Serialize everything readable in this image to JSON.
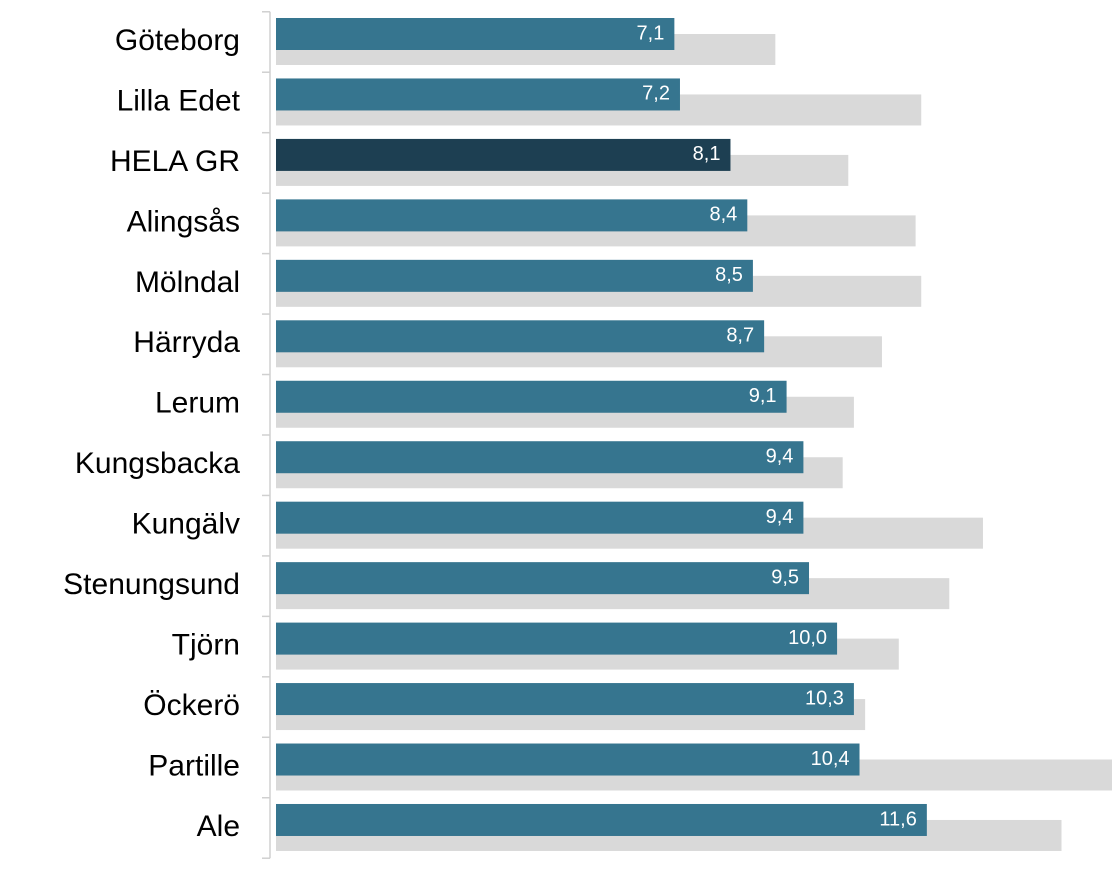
{
  "chart_data": {
    "type": "bar",
    "orientation": "horizontal",
    "categories": [
      "Göteborg",
      "Lilla Edet",
      "HELA GR",
      "Alingsås",
      "Mölndal",
      "Härryda",
      "Lerum",
      "Kungsbacka",
      "Kungälv",
      "Stenungsund",
      "Tjörn",
      "Öckerö",
      "Partille",
      "Ale"
    ],
    "series": [
      {
        "color": "#36758f",
        "colors": [
          "#36758f",
          "#36758f",
          "#1d3f52",
          "#36758f",
          "#36758f",
          "#36758f",
          "#36758f",
          "#36758f",
          "#36758f",
          "#36758f",
          "#36758f",
          "#36758f",
          "#36758f",
          "#36758f"
        ],
        "values": [
          7.1,
          7.2,
          8.1,
          8.4,
          8.5,
          8.7,
          9.1,
          9.4,
          9.4,
          9.5,
          10.0,
          10.3,
          10.4,
          11.6
        ],
        "value_labels": [
          "7,1",
          "7,2",
          "8,1",
          "8,4",
          "8,5",
          "8,7",
          "9,1",
          "9,4",
          "9,4",
          "9,5",
          "10,0",
          "10,3",
          "10,4",
          "11,6"
        ]
      },
      {
        "color": "#d9d9d9",
        "values": [
          8.9,
          11.5,
          10.2,
          11.4,
          11.5,
          10.8,
          10.3,
          10.1,
          12.6,
          12.0,
          11.1,
          10.5,
          14.9,
          14.0
        ]
      }
    ],
    "xlim": [
      0,
      14.9
    ]
  }
}
